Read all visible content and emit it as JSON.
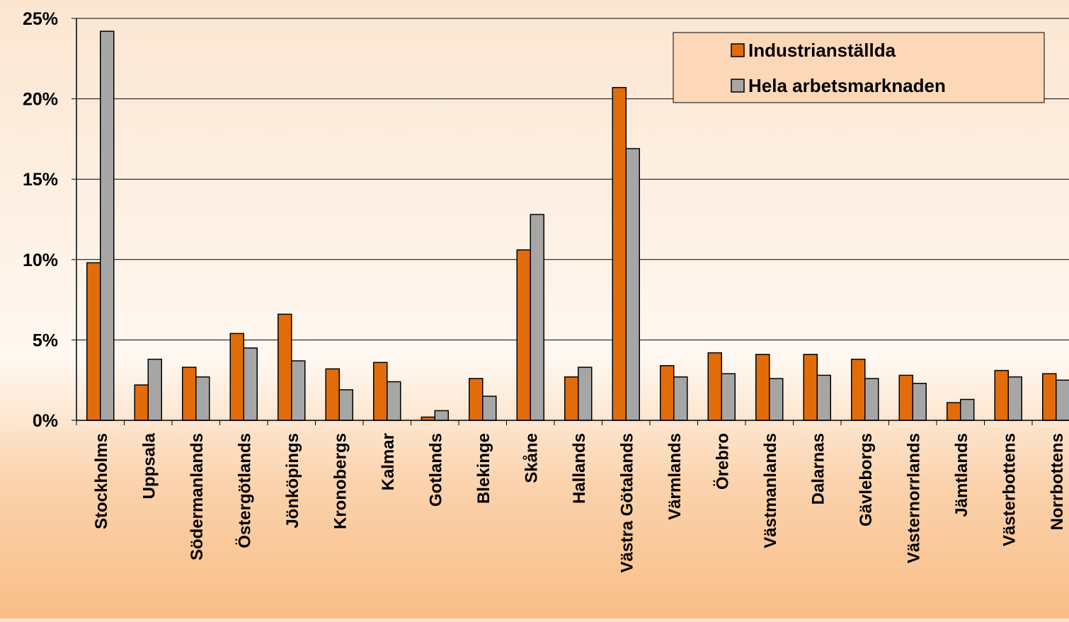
{
  "chart_data": {
    "type": "bar",
    "title": "",
    "xlabel": "",
    "ylabel": "",
    "ylim": [
      0,
      25
    ],
    "yticks": [
      "0%",
      "5%",
      "10%",
      "15%",
      "20%",
      "25%"
    ],
    "grid": true,
    "legend_position": "top-right",
    "categories": [
      "Stockholms",
      "Uppsala",
      "Södermanlands",
      "Östergötlands",
      "Jönköpings",
      "Kronobergs",
      "Kalmar",
      "Gotlands",
      "Blekinge",
      "Skåne",
      "Hallands",
      "Västra Götalands",
      "Värmlands",
      "Örebro",
      "Västmanlands",
      "Dalarnas",
      "Gävleborgs",
      "Västernorrlands",
      "Jämtlands",
      "Västerbottens",
      "Norrbottens"
    ],
    "series": [
      {
        "name": "Industrianställda",
        "color": "#e36c0a",
        "values": [
          9.8,
          2.2,
          3.3,
          5.4,
          6.6,
          3.2,
          3.6,
          0.2,
          2.6,
          10.6,
          2.7,
          20.7,
          3.4,
          4.2,
          4.1,
          4.1,
          3.8,
          2.8,
          1.1,
          3.1,
          2.9
        ]
      },
      {
        "name": "Hela arbetsmarknaden",
        "color": "#a6a6a6",
        "values": [
          24.2,
          3.8,
          2.7,
          4.5,
          3.7,
          1.9,
          2.4,
          0.6,
          1.5,
          12.8,
          3.3,
          16.9,
          2.7,
          2.9,
          2.6,
          2.8,
          2.6,
          2.3,
          1.3,
          2.7,
          2.5
        ]
      }
    ]
  }
}
